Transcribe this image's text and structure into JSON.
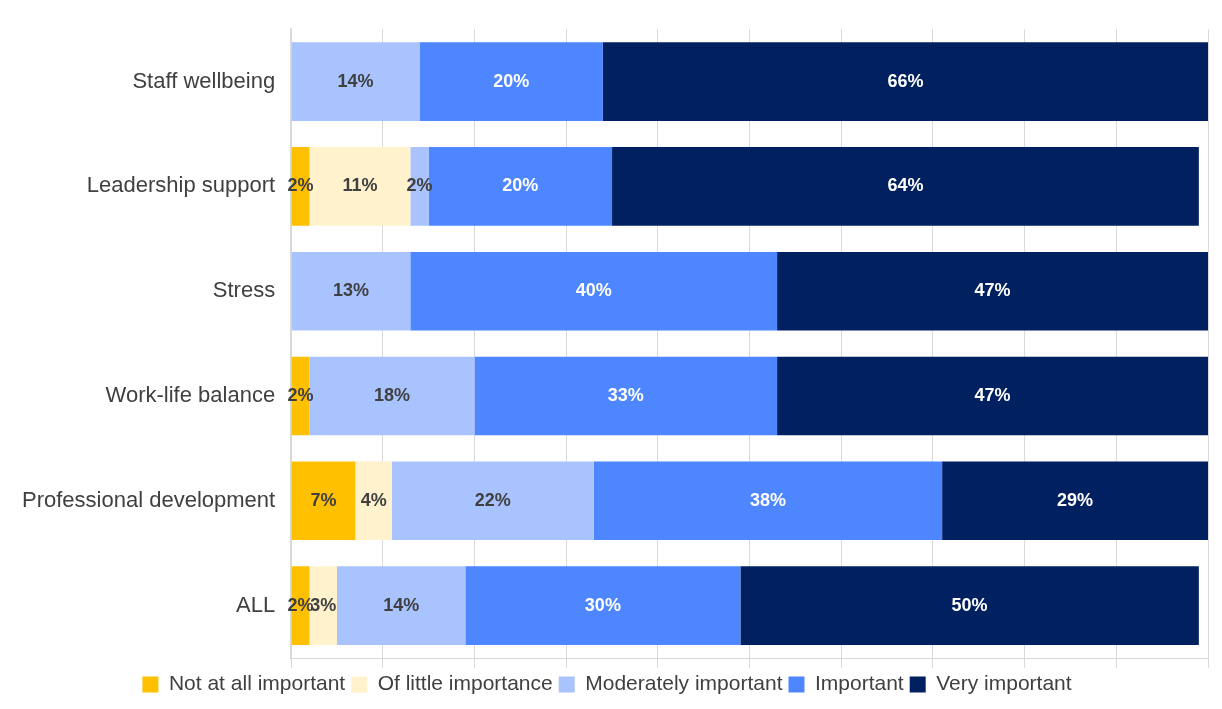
{
  "chart_data": {
    "type": "bar",
    "orientation": "horizontal",
    "stacked": true,
    "categories": [
      "Staff wellbeing",
      "Leadership support",
      "Stress",
      "Work-life balance",
      "Professional development",
      "ALL"
    ],
    "series": [
      {
        "name": "Not at all important",
        "color": "#ffc000",
        "values": [
          null,
          2,
          null,
          2,
          7,
          2
        ],
        "value_labels": [
          null,
          "2%",
          null,
          "2%",
          "7%",
          "2%"
        ]
      },
      {
        "name": "Of little importance",
        "color": "#fff2cc",
        "values": [
          null,
          11,
          null,
          null,
          4,
          3
        ],
        "value_labels": [
          null,
          "11%",
          null,
          null,
          "4%",
          "3%"
        ]
      },
      {
        "name": "Moderately important",
        "color": "#a9c3ff",
        "values": [
          14,
          2,
          13,
          18,
          22,
          14
        ],
        "value_labels": [
          "14%",
          "2%",
          "13%",
          "18%",
          "22%",
          "14%"
        ]
      },
      {
        "name": "Important",
        "color": "#4d86ff",
        "values": [
          20,
          20,
          40,
          33,
          38,
          30
        ],
        "value_labels": [
          "20%",
          "20%",
          "40%",
          "33%",
          "38%",
          "30%"
        ]
      },
      {
        "name": "Very important",
        "color": "#002060",
        "values": [
          66,
          64,
          47,
          47,
          29,
          50
        ],
        "value_labels": [
          "66%",
          "64%",
          "47%",
          "47%",
          "29%",
          "50%"
        ]
      }
    ],
    "tick_labels": "y",
    "grid": "x",
    "legend": "bottom"
  }
}
